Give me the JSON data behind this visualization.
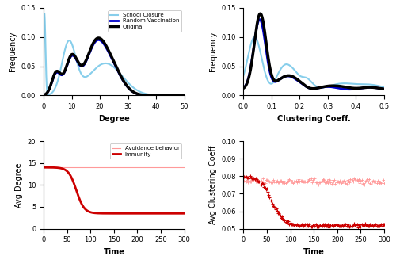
{
  "top_left": {
    "xlabel": "Degree",
    "ylabel": "Frequency",
    "xlim": [
      0,
      50
    ],
    "ylim": [
      0,
      0.15
    ],
    "yticks": [
      0,
      0.05,
      0.1,
      0.15
    ],
    "xticks": [
      0,
      10,
      20,
      30,
      40,
      50
    ],
    "legend": [
      "Original",
      "Random Vaccination",
      "School Closure"
    ],
    "colors": [
      "black",
      "#0000cc",
      "#87ceeb"
    ],
    "linewidths": [
      2.5,
      2.0,
      1.5
    ]
  },
  "top_right": {
    "xlabel": "Clustering Coeff.",
    "ylabel": "Frequency",
    "xlim": [
      0,
      0.5
    ],
    "ylim": [
      0,
      0.15
    ],
    "yticks": [
      0,
      0.05,
      0.1,
      0.15
    ],
    "xticks": [
      0,
      0.1,
      0.2,
      0.3,
      0.4,
      0.5
    ],
    "colors": [
      "black",
      "#0000cc",
      "#87ceeb"
    ],
    "linewidths": [
      2.5,
      2.0,
      1.5
    ]
  },
  "bottom_left": {
    "xlabel": "Time",
    "ylabel": "Avg Degree",
    "xlim": [
      0,
      300
    ],
    "ylim": [
      0,
      20
    ],
    "yticks": [
      0,
      5,
      10,
      15,
      20
    ],
    "xticks": [
      0,
      50,
      100,
      150,
      200,
      250,
      300
    ],
    "legend": [
      "Avoidance behavior",
      "Immunity"
    ],
    "avoid_color": "#ff9999",
    "immunity_color": "#cc0000",
    "avoid_lw": 0.8,
    "immunity_lw": 2.0
  },
  "bottom_right": {
    "xlabel": "Time",
    "ylabel": "Avg Clustering Coeff",
    "xlim": [
      0,
      300
    ],
    "ylim": [
      0.05,
      0.1
    ],
    "yticks": [
      0.05,
      0.06,
      0.07,
      0.08,
      0.09,
      0.1
    ],
    "xticks": [
      0,
      50,
      100,
      150,
      200,
      250,
      300
    ],
    "avoid_color": "#ff9999",
    "immunity_color": "#cc0000"
  },
  "bg_color": "#ffffff"
}
